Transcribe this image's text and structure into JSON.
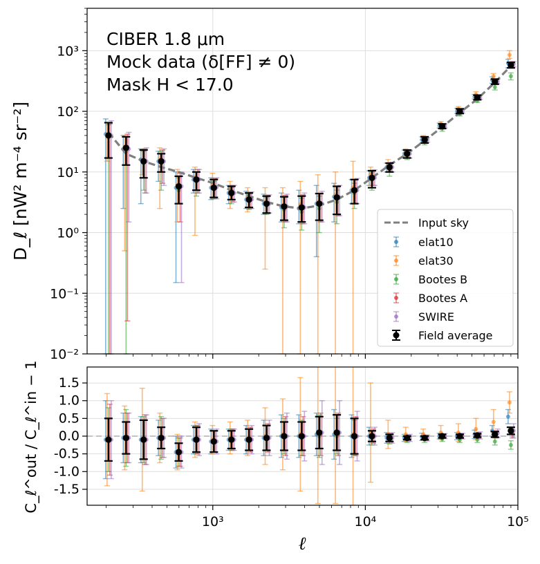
{
  "chart_data": [
    {
      "type": "scatter",
      "panel": "top",
      "yscale": "log",
      "xscale": "log",
      "xlim": [
        150,
        100000
      ],
      "ylim": [
        0.01,
        5000
      ],
      "ylabel": "D_ℓ [nW² m⁻⁴ sr⁻²]",
      "annotations": [
        "CIBER 1.8 μm",
        "Mock data (δ[FF] ≠ 0)",
        "Mask H < 17.0"
      ],
      "ytick_labels": [
        "10⁻²",
        "10⁻¹",
        "10⁰",
        "10¹",
        "10²",
        "10³"
      ],
      "ytick_values": [
        0.01,
        0.1,
        1,
        10,
        100,
        1000
      ],
      "legend": [
        "Input sky",
        "elat10",
        "elat30",
        "Bootes B",
        "Bootes A",
        "SWIRE",
        "Field average"
      ],
      "legend_position": "lower right",
      "x": [
        207,
        270,
        352,
        459,
        598,
        780,
        1016,
        1325,
        1727,
        2251,
        2935,
        3826,
        4988,
        6502,
        8476,
        11050,
        14400,
        18780,
        24480,
        31910,
        41600,
        54230,
        70700,
        90000
      ],
      "input_sky": [
        45,
        20,
        15,
        12,
        10,
        8,
        6.5,
        5,
        4,
        3.2,
        2.7,
        2.5,
        2.8,
        3.5,
        5,
        8,
        13,
        20,
        33,
        55,
        95,
        160,
        300,
        560
      ],
      "field_average": {
        "y": [
          40,
          25,
          15,
          15,
          5.8,
          7.5,
          5.5,
          4.5,
          3.5,
          3,
          2.7,
          2.6,
          3,
          3.8,
          5,
          8,
          12,
          20,
          34,
          57,
          100,
          170,
          310,
          580
        ],
        "ylow": [
          17,
          13,
          8,
          10,
          3,
          5,
          3.8,
          3.5,
          2.6,
          2.1,
          1.6,
          1.5,
          1.6,
          2,
          3,
          5.5,
          10,
          17,
          30,
          52,
          92,
          155,
          280,
          520
        ],
        "yhigh": [
          65,
          38,
          23,
          20,
          8.5,
          10,
          7.5,
          5.8,
          4.5,
          4,
          3.9,
          4,
          4.4,
          5.8,
          7.5,
          10.5,
          14,
          23,
          38,
          62,
          110,
          185,
          340,
          640
        ]
      },
      "series": [
        {
          "name": "elat10",
          "color": "#1f77b4",
          "y": [
            42,
            24,
            16,
            15,
            5.5,
            7.5,
            5.5,
            4.5,
            3.5,
            3,
            2.6,
            2.5,
            3,
            3.9,
            5,
            8,
            12,
            20,
            34,
            58,
            100,
            175,
            330,
            620
          ],
          "ylow": [
            0.01,
            2.5,
            3,
            7,
            0.15,
            4.5,
            3.5,
            3,
            2.5,
            2,
            1.5,
            1.4,
            0.4,
            1.5,
            3,
            6,
            10,
            17,
            30,
            53,
            92,
            160,
            290,
            520
          ],
          "yhigh": [
            75,
            40,
            24,
            22,
            10,
            11,
            8,
            6,
            4.8,
            4.3,
            4.5,
            5,
            6,
            6.5,
            7.5,
            10.5,
            14,
            23,
            38,
            64,
            112,
            190,
            370,
            720
          ]
        },
        {
          "name": "elat30",
          "color": "#ff7f0e",
          "y": [
            40,
            26,
            15,
            16,
            6,
            8,
            6,
            5,
            3.8,
            3.2,
            2.8,
            2.9,
            3.2,
            4.2,
            5.5,
            9,
            13,
            21,
            36,
            62,
            110,
            190,
            380,
            850
          ],
          "ylow": [
            15,
            0.5,
            9,
            2.5,
            1.5,
            0.9,
            3.6,
            2.5,
            2.2,
            0.25,
            0.01,
            0.01,
            0.01,
            0.01,
            0.01,
            6,
            10,
            18,
            31,
            55,
            100,
            170,
            340,
            750
          ],
          "yhigh": [
            65,
            40,
            24,
            25,
            11,
            12,
            9.5,
            7,
            5.5,
            5.5,
            5.5,
            7,
            9,
            10,
            15,
            12,
            16,
            24,
            40,
            68,
            120,
            210,
            420,
            1000
          ]
        },
        {
          "name": "Bootes B",
          "color": "#2ca02c",
          "y": [
            38,
            22,
            14,
            14,
            5,
            7,
            5.2,
            4.2,
            3.3,
            2.8,
            2.4,
            2.2,
            2.5,
            3.2,
            4.5,
            7.5,
            11,
            18,
            31,
            52,
            90,
            150,
            250,
            380
          ],
          "ylow": [
            0.01,
            0.01,
            5,
            5,
            3,
            4,
            3.6,
            3,
            2.4,
            2,
            1.2,
            1.1,
            1,
            1.4,
            2.5,
            5,
            8.5,
            16,
            28,
            47,
            84,
            140,
            225,
            330
          ],
          "yhigh": [
            60,
            38,
            22,
            22,
            8,
            10,
            7,
            5.5,
            4.3,
            3.8,
            3.8,
            3.7,
            4,
            5,
            6.5,
            10,
            13.5,
            21,
            34,
            57,
            97,
            162,
            275,
            430
          ]
        },
        {
          "name": "Bootes A",
          "color": "#d62728",
          "y": [
            40,
            25,
            15,
            15,
            5.6,
            7.4,
            5.5,
            4.6,
            3.5,
            3,
            2.6,
            2.6,
            3,
            3.8,
            5,
            8,
            12,
            20,
            34,
            57,
            100,
            170,
            310,
            600
          ],
          "ylow": [
            0.01,
            0.035,
            4.5,
            6.5,
            1.5,
            4.5,
            3.8,
            3.2,
            2.5,
            2.1,
            1.5,
            1.4,
            1.5,
            1.9,
            3,
            6,
            10,
            17,
            31,
            53,
            93,
            157,
            285,
            540
          ],
          "yhigh": [
            62,
            42,
            24,
            23,
            9.5,
            11,
            7.8,
            6,
            4.6,
            4.1,
            4.1,
            4.2,
            4.5,
            5.8,
            7.5,
            10.5,
            14,
            23,
            37,
            62,
            108,
            183,
            335,
            660
          ]
        },
        {
          "name": "SWIRE",
          "color": "#9467bd",
          "y": [
            40,
            24,
            15,
            15,
            5.8,
            7.5,
            5.6,
            4.5,
            3.5,
            3,
            2.7,
            2.6,
            3,
            3.8,
            5,
            8,
            12,
            20,
            34,
            57,
            100,
            170,
            310,
            600
          ],
          "ylow": [
            0.01,
            1.5,
            4.5,
            6,
            0.15,
            4.5,
            3.6,
            3.2,
            2.5,
            2.1,
            1.5,
            1.4,
            1.5,
            1.9,
            3,
            6,
            10,
            17,
            31,
            53,
            93,
            157,
            285,
            540
          ],
          "yhigh": [
            70,
            45,
            25,
            24,
            10,
            11,
            8,
            6,
            4.7,
            4.2,
            4.3,
            4.5,
            4.8,
            6,
            7.8,
            10.8,
            14.5,
            23,
            37,
            62,
            108,
            183,
            335,
            660
          ]
        }
      ]
    },
    {
      "type": "scatter",
      "panel": "bottom",
      "xscale": "log",
      "xlim": [
        150,
        100000
      ],
      "ylim": [
        -1.95,
        1.95
      ],
      "xlabel": "ℓ",
      "ylabel": "C_ℓ^out / C_ℓ^in − 1",
      "ytick_labels": [
        "1.5",
        "1.0",
        "0.5",
        "0.0",
        "-0.5",
        "-1.0",
        "-1.5"
      ],
      "ytick_values": [
        1.5,
        1.0,
        0.5,
        0.0,
        -0.5,
        -1.0,
        -1.5
      ],
      "xtick_labels": [
        "10³",
        "10⁴",
        "10⁵"
      ],
      "xtick_values": [
        1000,
        10000,
        100000
      ],
      "x": [
        207,
        270,
        352,
        459,
        598,
        780,
        1016,
        1325,
        1727,
        2251,
        2935,
        3826,
        4988,
        6502,
        8476,
        11050,
        14400,
        18780,
        24480,
        31910,
        41600,
        54230,
        70700,
        90000
      ],
      "field_average": {
        "y": [
          -0.1,
          -0.05,
          -0.1,
          -0.05,
          -0.45,
          -0.1,
          -0.15,
          -0.1,
          -0.1,
          -0.05,
          0,
          0,
          0.1,
          0.1,
          0,
          0,
          -0.05,
          -0.05,
          -0.05,
          0,
          0,
          0.02,
          0.05,
          0.15
        ],
        "err": [
          0.6,
          0.45,
          0.55,
          0.3,
          0.25,
          0.35,
          0.3,
          0.25,
          0.3,
          0.35,
          0.4,
          0.4,
          0.45,
          0.5,
          0.5,
          0.15,
          0.1,
          0.05,
          0.05,
          0.05,
          0.05,
          0.05,
          0.08,
          0.1
        ]
      },
      "series": [
        {
          "name": "elat10",
          "color": "#1f77b4",
          "y": [
            -0.1,
            -0.05,
            -0.1,
            -0.05,
            -0.45,
            -0.1,
            -0.15,
            -0.1,
            -0.1,
            -0.05,
            0,
            0,
            0.05,
            0.05,
            0,
            0,
            -0.05,
            -0.05,
            -0.02,
            0,
            0,
            0.05,
            0.15,
            0.55
          ],
          "err": [
            1.1,
            0.7,
            0.65,
            0.5,
            0.45,
            0.4,
            0.35,
            0.3,
            0.4,
            0.5,
            0.6,
            0.6,
            0.6,
            0.7,
            0.6,
            0.25,
            0.15,
            0.1,
            0.1,
            0.08,
            0.1,
            0.12,
            0.15,
            0.2
          ]
        },
        {
          "name": "elat30",
          "color": "#ff7f0e",
          "y": [
            -0.1,
            -0.05,
            -0.1,
            -0.05,
            -0.45,
            -0.1,
            -0.1,
            -0.05,
            -0.05,
            0,
            0.05,
            0.05,
            0.1,
            0.1,
            0.05,
            0.1,
            0.05,
            0.05,
            0.05,
            0.1,
            0.1,
            0.2,
            0.4,
            0.95
          ],
          "err": [
            1.3,
            0.9,
            1.45,
            0.7,
            0.5,
            0.5,
            0.4,
            0.45,
            0.5,
            0.8,
            1.0,
            1.6,
            2.0,
            2.0,
            2.0,
            1.4,
            0.4,
            0.2,
            0.15,
            0.2,
            0.25,
            0.3,
            0.35,
            0.3
          ]
        },
        {
          "name": "Bootes B",
          "color": "#2ca02c",
          "y": [
            -0.1,
            -0.05,
            -0.1,
            -0.05,
            -0.45,
            -0.1,
            -0.15,
            -0.1,
            -0.1,
            -0.05,
            0,
            -0.05,
            0,
            0,
            -0.05,
            -0.05,
            -0.1,
            -0.1,
            -0.1,
            -0.08,
            -0.1,
            -0.1,
            -0.15,
            -0.25
          ],
          "err": [
            0.9,
            0.8,
            0.65,
            0.6,
            0.4,
            0.4,
            0.3,
            0.3,
            0.3,
            0.35,
            0.5,
            0.5,
            0.6,
            0.5,
            0.5,
            0.2,
            0.12,
            0.08,
            0.08,
            0.07,
            0.08,
            0.08,
            0.1,
            0.12
          ]
        },
        {
          "name": "Bootes A",
          "color": "#d62728",
          "y": [
            -0.1,
            -0.05,
            -0.1,
            -0.05,
            -0.45,
            -0.1,
            -0.15,
            -0.1,
            -0.1,
            -0.05,
            0,
            0,
            0.05,
            0.05,
            0,
            0,
            -0.05,
            -0.05,
            -0.05,
            0,
            0,
            0.02,
            0.05,
            0.1
          ],
          "err": [
            1.0,
            0.7,
            0.7,
            0.55,
            0.4,
            0.4,
            0.3,
            0.3,
            0.35,
            0.4,
            0.55,
            0.55,
            0.6,
            0.6,
            0.55,
            0.2,
            0.12,
            0.08,
            0.08,
            0.06,
            0.07,
            0.08,
            0.1,
            0.15
          ]
        },
        {
          "name": "SWIRE",
          "color": "#9467bd",
          "y": [
            -0.1,
            -0.05,
            -0.1,
            -0.05,
            -0.45,
            -0.1,
            -0.15,
            -0.1,
            -0.1,
            -0.05,
            0,
            0,
            0.1,
            0.1,
            0,
            0,
            -0.05,
            -0.05,
            -0.05,
            0,
            0,
            0.02,
            0.08,
            0.15
          ],
          "err": [
            1.1,
            0.7,
            0.7,
            0.55,
            0.45,
            0.45,
            0.35,
            0.3,
            0.4,
            0.5,
            0.65,
            0.7,
            0.9,
            0.9,
            0.7,
            0.25,
            0.15,
            0.1,
            0.08,
            0.07,
            0.08,
            0.1,
            0.12,
            0.2
          ]
        }
      ]
    }
  ]
}
